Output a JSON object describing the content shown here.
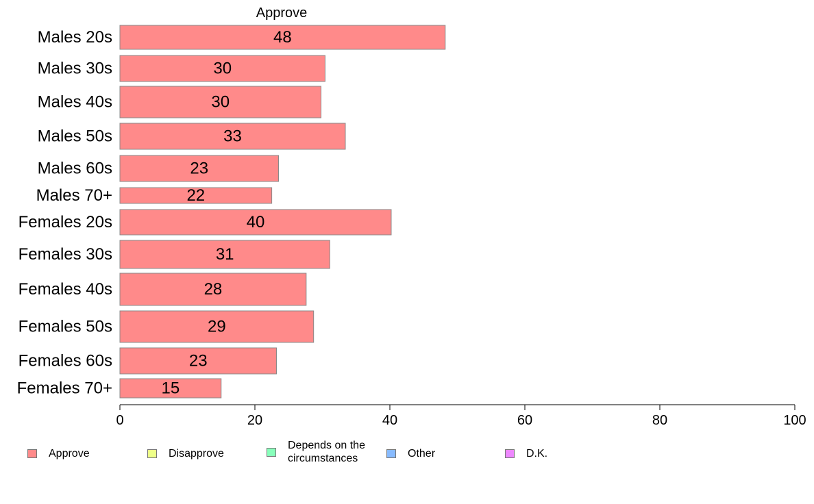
{
  "chart_data": {
    "type": "bar",
    "orientation": "horizontal",
    "title": "Approve",
    "categories": [
      "Males 20s",
      "Males 30s",
      "Males 40s",
      "Males 50s",
      "Males 60s",
      "Males 70+",
      "Females 20s",
      "Females 30s",
      "Females 40s",
      "Females 50s",
      "Females 60s",
      "Females 70+"
    ],
    "series": [
      {
        "name": "Approve",
        "color": "#ff8a8a",
        "values": [
          48.2,
          30.4,
          29.8,
          33.4,
          23.5,
          22.5,
          40.2,
          31.1,
          27.6,
          28.7,
          23.2,
          15.0
        ],
        "labels": [
          "48",
          "30",
          "30",
          "33",
          "23",
          "22",
          "40",
          "31",
          "28",
          "29",
          "23",
          "15"
        ]
      }
    ],
    "xlim": [
      0,
      100
    ],
    "xticks": [
      "0",
      "20",
      "40",
      "60",
      "80",
      "100"
    ],
    "grid": false,
    "legend": {
      "position": "bottom",
      "items": [
        {
          "label": "Approve",
          "color": "#ff8a8a"
        },
        {
          "label": "Disapprove",
          "color": "#eeff88"
        },
        {
          "label": "Depends on the circumstances",
          "color": "#88ffbb"
        },
        {
          "label": "Other",
          "color": "#88bbff"
        },
        {
          "label": "D.K.",
          "color": "#ee88ff"
        }
      ]
    }
  }
}
